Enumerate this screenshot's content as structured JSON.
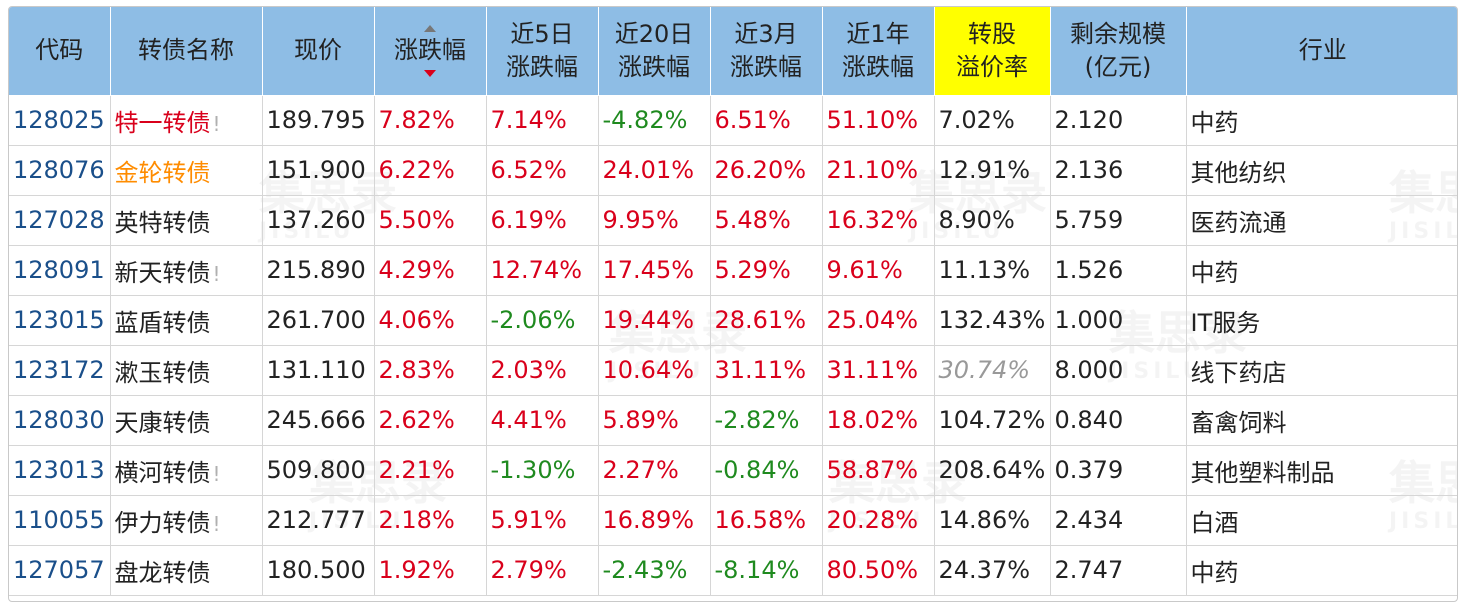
{
  "headers": [
    [
      "代码"
    ],
    [
      "转债名称"
    ],
    [
      "现价"
    ],
    [
      "涨跌幅"
    ],
    [
      "近5日",
      "涨跌幅"
    ],
    [
      "近20日",
      "涨跌幅"
    ],
    [
      "近3月",
      "涨跌幅"
    ],
    [
      "近1年",
      "涨跌幅"
    ],
    [
      "转股",
      "溢价率"
    ],
    [
      "剩余规模",
      "(亿元)"
    ],
    [
      "行业"
    ]
  ],
  "sort_column": "涨跌幅",
  "highlight_column": "转股溢价率",
  "watermark": {
    "text": "集思录",
    "sub": "JISILU"
  },
  "colors": {
    "header_bg": "#8ebde5",
    "highlight": "#ffff00",
    "up": "#d9001b",
    "down": "#1f8a1f",
    "code": "#1a4f8a",
    "name_orange": "#ff8c00"
  },
  "rows": [
    {
      "code": "128025",
      "name": "特一转债",
      "name_color": "red",
      "flag": "!",
      "price": "189.795",
      "chg": "7.82%",
      "chg_color": "red",
      "d5": "7.14%",
      "d5_color": "red",
      "d20": "-4.82%",
      "d20_color": "green",
      "m3": "6.51%",
      "m3_color": "red",
      "y1": "51.10%",
      "y1_color": "red",
      "premium": "7.02%",
      "premium_style": "",
      "scale": "2.120",
      "industry": "中药"
    },
    {
      "code": "128076",
      "name": "金轮转债",
      "name_color": "orange",
      "flag": "",
      "price": "151.900",
      "chg": "6.22%",
      "chg_color": "red",
      "d5": "6.52%",
      "d5_color": "red",
      "d20": "24.01%",
      "d20_color": "red",
      "m3": "26.20%",
      "m3_color": "red",
      "y1": "21.10%",
      "y1_color": "red",
      "premium": "12.91%",
      "premium_style": "",
      "scale": "2.136",
      "industry": "其他纺织"
    },
    {
      "code": "127028",
      "name": "英特转债",
      "name_color": "",
      "flag": "",
      "price": "137.260",
      "chg": "5.50%",
      "chg_color": "red",
      "d5": "6.19%",
      "d5_color": "red",
      "d20": "9.95%",
      "d20_color": "red",
      "m3": "5.48%",
      "m3_color": "red",
      "y1": "16.32%",
      "y1_color": "red",
      "premium": "8.90%",
      "premium_style": "",
      "scale": "5.759",
      "industry": "医药流通"
    },
    {
      "code": "128091",
      "name": "新天转债",
      "name_color": "",
      "flag": "!",
      "price": "215.890",
      "chg": "4.29%",
      "chg_color": "red",
      "d5": "12.74%",
      "d5_color": "red",
      "d20": "17.45%",
      "d20_color": "red",
      "m3": "5.29%",
      "m3_color": "red",
      "y1": "9.61%",
      "y1_color": "red",
      "premium": "11.13%",
      "premium_style": "",
      "scale": "1.526",
      "industry": "中药"
    },
    {
      "code": "123015",
      "name": "蓝盾转债",
      "name_color": "",
      "flag": "",
      "price": "261.700",
      "chg": "4.06%",
      "chg_color": "red",
      "d5": "-2.06%",
      "d5_color": "green",
      "d20": "19.44%",
      "d20_color": "red",
      "m3": "28.61%",
      "m3_color": "red",
      "y1": "25.04%",
      "y1_color": "red",
      "premium": "132.43%",
      "premium_style": "",
      "scale": "1.000",
      "industry": "IT服务"
    },
    {
      "code": "123172",
      "name": "漱玉转债",
      "name_color": "",
      "flag": "",
      "price": "131.110",
      "chg": "2.83%",
      "chg_color": "red",
      "d5": "2.03%",
      "d5_color": "red",
      "d20": "10.64%",
      "d20_color": "red",
      "m3": "31.11%",
      "m3_color": "red",
      "y1": "31.11%",
      "y1_color": "red",
      "premium": "30.74%",
      "premium_style": "gray-i",
      "scale": "8.000",
      "industry": "线下药店"
    },
    {
      "code": "128030",
      "name": "天康转债",
      "name_color": "",
      "flag": "",
      "price": "245.666",
      "chg": "2.62%",
      "chg_color": "red",
      "d5": "4.41%",
      "d5_color": "red",
      "d20": "5.89%",
      "d20_color": "red",
      "m3": "-2.82%",
      "m3_color": "green",
      "y1": "18.02%",
      "y1_color": "red",
      "premium": "104.72%",
      "premium_style": "",
      "scale": "0.840",
      "industry": "畜禽饲料"
    },
    {
      "code": "123013",
      "name": "横河转债",
      "name_color": "",
      "flag": "!",
      "price": "509.800",
      "chg": "2.21%",
      "chg_color": "red",
      "d5": "-1.30%",
      "d5_color": "green",
      "d20": "2.27%",
      "d20_color": "red",
      "m3": "-0.84%",
      "m3_color": "green",
      "y1": "58.87%",
      "y1_color": "red",
      "premium": "208.64%",
      "premium_style": "",
      "scale": "0.379",
      "industry": "其他塑料制品"
    },
    {
      "code": "110055",
      "name": "伊力转债",
      "name_color": "",
      "flag": "!",
      "price": "212.777",
      "chg": "2.18%",
      "chg_color": "red",
      "d5": "5.91%",
      "d5_color": "red",
      "d20": "16.89%",
      "d20_color": "red",
      "m3": "16.58%",
      "m3_color": "red",
      "y1": "20.28%",
      "y1_color": "red",
      "premium": "14.86%",
      "premium_style": "",
      "scale": "2.434",
      "industry": "白酒"
    },
    {
      "code": "127057",
      "name": "盘龙转债",
      "name_color": "",
      "flag": "",
      "price": "180.500",
      "chg": "1.92%",
      "chg_color": "red",
      "d5": "2.79%",
      "d5_color": "red",
      "d20": "-2.43%",
      "d20_color": "green",
      "m3": "-8.14%",
      "m3_color": "green",
      "y1": "80.50%",
      "y1_color": "red",
      "premium": "24.37%",
      "premium_style": "",
      "scale": "2.747",
      "industry": "中药"
    }
  ]
}
